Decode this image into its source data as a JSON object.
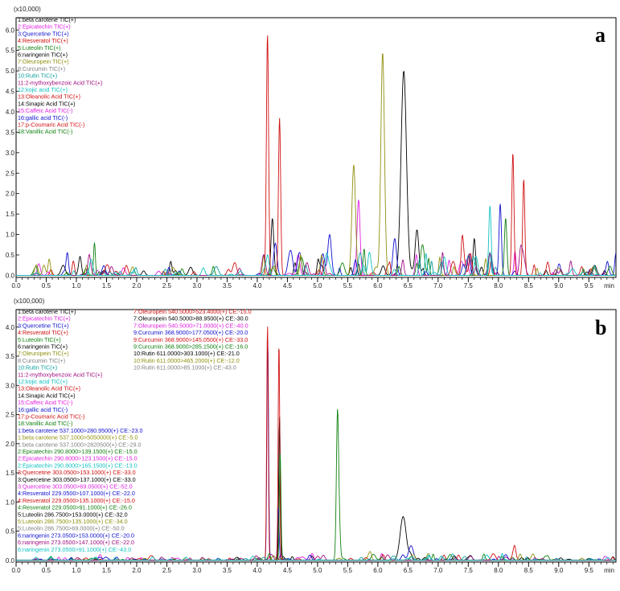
{
  "chart_data": [
    {
      "type": "line",
      "panel_label": "a",
      "y_scale_label": "(x10,000)",
      "x_unit": "min",
      "xlim": [
        0.0,
        9.95
      ],
      "ylim": [
        -0.05,
        6.3
      ],
      "x_ticks": [
        "0.0",
        "0.1",
        "0.2",
        "0.3",
        "0.4",
        "0.5",
        "0.6",
        "0.7",
        "0.8",
        "0.9",
        "1.0",
        "1.1",
        "1.2",
        "1.3",
        "1.4",
        "1.5",
        "1.6",
        "1.7",
        "1.8",
        "1.9",
        "2.0",
        "2.1",
        "2.2",
        "2.3",
        "2.4",
        "2.5",
        "2.6",
        "2.7",
        "2.8",
        "2.9",
        "3.0",
        "3.1",
        "3.2",
        "3.3",
        "3.4",
        "3.5",
        "3.6",
        "3.7",
        "3.8",
        "3.9",
        "4.0",
        "4.1",
        "4.2",
        "4.3",
        "4.4",
        "4.5",
        "4.6",
        "4.7",
        "4.8",
        "4.9",
        "5.0",
        "5.1",
        "5.2",
        "5.3",
        "5.4",
        "5.5",
        "5.6",
        "5.7",
        "5.8",
        "5.9",
        "6.0",
        "6.1",
        "6.2",
        "6.3",
        "6.4",
        "6.5",
        "6.6",
        "6.7",
        "6.8",
        "6.9",
        "7.0",
        "7.1",
        "7.2",
        "7.3",
        "7.4",
        "7.5",
        "7.6",
        "7.7",
        "7.8",
        "7.9",
        "8.0",
        "8.1",
        "8.2",
        "8.3",
        "8.4",
        "8.5",
        "8.6",
        "8.7",
        "8.8",
        "8.9",
        "9.0",
        "9.1",
        "9.2",
        "9.3",
        "9.4",
        "9.5",
        "9.6",
        "9.7",
        "9.8",
        "9.9"
      ],
      "x_tick_labels": [
        "0.0",
        "0.5",
        "1.0",
        "1.5",
        "2.0",
        "2.5",
        "3.0",
        "3.5",
        "4.0",
        "4.5",
        "5.0",
        "5.5",
        "6.0",
        "6.5",
        "7.0",
        "7.5",
        "8.0",
        "8.5",
        "9.0",
        "9.5"
      ],
      "y_ticks": [
        "0.0",
        "0.5",
        "1.0",
        "1.5",
        "2.0",
        "2.5",
        "3.0",
        "3.5",
        "4.0",
        "4.5",
        "5.0",
        "5.5",
        "6.0"
      ],
      "legend": [
        {
          "text": "1:beta carotene TIC(+)",
          "color": "#000000"
        },
        {
          "text": "2:Epicatechin TIC(+)",
          "color": "#e020e0"
        },
        {
          "text": "3:Quercetine TIC(+)",
          "color": "#1010d0"
        },
        {
          "text": "4:Resveratol TIC(+)",
          "color": "#d01010"
        },
        {
          "text": "5:Luteolin TIC(+)",
          "color": "#108010"
        },
        {
          "text": "6:naringenin TIC(+)",
          "color": "#000000"
        },
        {
          "text": "7:Oleuropein TIC(+)",
          "color": "#909010"
        },
        {
          "text": "8:Curcumin TIC(+)",
          "color": "#808080"
        },
        {
          "text": "10:Rutin TIC(+)",
          "color": "#10a0a0"
        },
        {
          "text": "11:2-mythoxybenzoic Acid TIC(+)",
          "color": "#a01080"
        },
        {
          "text": "12:kojic acid TIC(+)",
          "color": "#10c0c0"
        },
        {
          "text": "13:Oleanolic Acid TIC(+)",
          "color": "#d01010"
        },
        {
          "text": "14:Sinapic Acid TIC(+)",
          "color": "#000000"
        },
        {
          "text": "15:Caffeic Acid TIC(-)",
          "color": "#e020e0"
        },
        {
          "text": "16:gallic acid TIC(-)",
          "color": "#1010d0"
        },
        {
          "text": "17:p-Coumaric Acid TIC(-)",
          "color": "#d01010"
        },
        {
          "text": "18:Vanillic Acid TIC(-)",
          "color": "#108010"
        }
      ],
      "peaks": [
        {
          "x": 4.17,
          "h": 5.9,
          "w": 0.018,
          "color": "#d01010"
        },
        {
          "x": 4.37,
          "h": 3.85,
          "w": 0.018,
          "color": "#d01010"
        },
        {
          "x": 6.08,
          "h": 5.45,
          "w": 0.03,
          "color": "#909010"
        },
        {
          "x": 6.43,
          "h": 5.0,
          "w": 0.045,
          "color": "#000000"
        },
        {
          "x": 5.6,
          "h": 2.7,
          "w": 0.03,
          "color": "#909010"
        },
        {
          "x": 5.68,
          "h": 1.85,
          "w": 0.025,
          "color": "#e020e0"
        },
        {
          "x": 8.24,
          "h": 3.0,
          "w": 0.018,
          "color": "#d01010"
        },
        {
          "x": 8.42,
          "h": 2.35,
          "w": 0.018,
          "color": "#d01010"
        },
        {
          "x": 8.03,
          "h": 1.75,
          "w": 0.02,
          "color": "#1010d0"
        },
        {
          "x": 7.86,
          "h": 1.7,
          "w": 0.02,
          "color": "#10c0c0"
        },
        {
          "x": 8.12,
          "h": 1.4,
          "w": 0.02,
          "color": "#108010"
        },
        {
          "x": 1.3,
          "h": 0.8,
          "w": 0.015,
          "color": "#108010"
        },
        {
          "x": 0.85,
          "h": 0.55,
          "w": 0.02,
          "color": "#1010d0"
        },
        {
          "x": 0.55,
          "h": 0.4,
          "w": 0.02,
          "color": "#909010"
        },
        {
          "x": 0.95,
          "h": 0.35,
          "w": 0.02,
          "color": "#d01010"
        },
        {
          "x": 4.25,
          "h": 0.85,
          "w": 0.02,
          "color": "#000000"
        },
        {
          "x": 5.2,
          "h": 1.0,
          "w": 0.03,
          "color": "#1010d0"
        },
        {
          "x": 6.28,
          "h": 0.9,
          "w": 0.03,
          "color": "#1010d0"
        },
        {
          "x": 6.65,
          "h": 1.1,
          "w": 0.03,
          "color": "#000000"
        },
        {
          "x": 7.4,
          "h": 0.85,
          "w": 0.02,
          "color": "#d01010"
        },
        {
          "x": 7.6,
          "h": 0.9,
          "w": 0.02,
          "color": "#000000"
        },
        {
          "x": 9.95,
          "h": 0.55,
          "w": 0.02,
          "color": "#1010d0"
        },
        {
          "x": 9.2,
          "h": 0.35,
          "w": 0.02,
          "color": "#a01080"
        }
      ]
    },
    {
      "type": "line",
      "panel_label": "b",
      "y_scale_label": "(x100,000)",
      "x_unit": "min",
      "xlim": [
        0.0,
        9.95
      ],
      "ylim": [
        -0.03,
        4.3
      ],
      "x_ticks": [
        "0.0",
        "0.1",
        "0.2",
        "0.3",
        "0.4",
        "0.5",
        "0.6",
        "0.7",
        "0.8",
        "0.9",
        "1.0",
        "1.1",
        "1.2",
        "1.3",
        "1.4",
        "1.5",
        "1.6",
        "1.7",
        "1.8",
        "1.9",
        "2.0",
        "2.1",
        "2.2",
        "2.3",
        "2.4",
        "2.5",
        "2.6",
        "2.7",
        "2.8",
        "2.9",
        "3.0",
        "3.1",
        "3.2",
        "3.3",
        "3.4",
        "3.5",
        "3.6",
        "3.7",
        "3.8",
        "3.9",
        "4.0",
        "4.1",
        "4.2",
        "4.3",
        "4.4",
        "4.5",
        "4.6",
        "4.7",
        "4.8",
        "4.9",
        "5.0",
        "5.1",
        "5.2",
        "5.3",
        "5.4",
        "5.5",
        "5.6",
        "5.7",
        "5.8",
        "5.9",
        "6.0",
        "6.1",
        "6.2",
        "6.3",
        "6.4",
        "6.5",
        "6.6",
        "6.7",
        "6.8",
        "6.9",
        "7.0",
        "7.1",
        "7.2",
        "7.3",
        "7.4",
        "7.5",
        "7.6",
        "7.7",
        "7.8",
        "7.9",
        "8.0",
        "8.1",
        "8.2",
        "8.3",
        "8.4",
        "8.5",
        "8.6",
        "8.7",
        "8.8",
        "8.9",
        "9.0",
        "9.1",
        "9.2",
        "9.3",
        "9.4",
        "9.5",
        "9.6",
        "9.7",
        "9.8",
        "9.9"
      ],
      "x_tick_labels": [
        "0.0",
        "0.5",
        "1.0",
        "1.5",
        "2.0",
        "2.5",
        "3.0",
        "3.5",
        "4.0",
        "4.5",
        "5.0",
        "5.5",
        "6.0",
        "6.5",
        "7.0",
        "7.5",
        "8.0",
        "8.5",
        "9.0",
        "9.5"
      ],
      "y_ticks": [
        "0.0",
        "0.5",
        "1.0",
        "1.5",
        "2.0",
        "2.5",
        "3.0",
        "3.5",
        "4.0"
      ],
      "legend": [
        {
          "text": "1:beta carotene TIC(+)",
          "color": "#000000"
        },
        {
          "text": "2:Epicatechin TIC(+)",
          "color": "#e020e0"
        },
        {
          "text": "3:Quercetine TIC(+)",
          "color": "#1010d0"
        },
        {
          "text": "4:Resveratol TIC(+)",
          "color": "#d01010"
        },
        {
          "text": "5:Luteolin TIC(+)",
          "color": "#108010"
        },
        {
          "text": "6:naringenin TIC(+)",
          "color": "#000000"
        },
        {
          "text": "7:Oleuropein TIC(+)",
          "color": "#909010"
        },
        {
          "text": "8:Curcumin TIC(+)",
          "color": "#808080"
        },
        {
          "text": "10:Rutin TIC(+)",
          "color": "#10a0a0"
        },
        {
          "text": "11:2-mythoxybenzoic Acid TIC(+)",
          "color": "#a01080"
        },
        {
          "text": "12:kojic acid TIC(+)",
          "color": "#10c0c0"
        },
        {
          "text": "13:Oleanolic Acid TIC(+)",
          "color": "#d01010"
        },
        {
          "text": "14:Sinapic Acid TIC(+)",
          "color": "#000000"
        },
        {
          "text": "15:Caffeic Acid TIC(-)",
          "color": "#e020e0"
        },
        {
          "text": "16:gallic acid TIC(-)",
          "color": "#1010d0"
        },
        {
          "text": "17:p-Coumaric Acid TIC(-)",
          "color": "#d01010"
        },
        {
          "text": "18:Vanillic Acid TIC(-)",
          "color": "#108010"
        },
        {
          "text": "1:beta carotene 537.1000>280.9500(+) CE:-23.0",
          "color": "#1010d0"
        },
        {
          "text": "1:beta carotene 537.1000>5050000(+) CE:-5.0",
          "color": "#909010"
        },
        {
          "text": "1:beta carotene 537.1000>2820500(+) CE:-29.0",
          "color": "#808080"
        },
        {
          "text": "2:Epicatechin 290.8000>139.1500(+) CE:-15.0",
          "color": "#108010"
        },
        {
          "text": "2:Epicatechin 290.8000>123.1500(+) CE:-15.0",
          "color": "#e020e0"
        },
        {
          "text": "2:Epicatechin 290.8000>165.1500(+) CE:-13.0",
          "color": "#10c0c0"
        },
        {
          "text": "3:Quercetine 303.0500>153.1000(+) CE:-33.0",
          "color": "#d01010"
        },
        {
          "text": "3:Quercetine 303.0500>137.1000(+) CE:-33.0",
          "color": "#000000"
        },
        {
          "text": "3:Quercetine 303.0500>69.0500(+) CE:-52.0",
          "color": "#e020e0"
        },
        {
          "text": "4:Resveratol 229.0500>107.1000(+) CE:-22.0",
          "color": "#1010d0"
        },
        {
          "text": "4:Resveratol 229.0500>135.1000(+) CE:-15.0",
          "color": "#d01010"
        },
        {
          "text": "4:Resveratol 229.0500>91.1000(+) CE:-26.0",
          "color": "#108010"
        },
        {
          "text": "5:Luteolin 286.7500>153.0000(+) CE:-32.0",
          "color": "#000000"
        },
        {
          "text": "5:Luteolin 286.7500>135.1000(+) CE:-34.0",
          "color": "#909010"
        },
        {
          "text": "5:Luteolin 286.7500>69.0000(+) CE:-50.0",
          "color": "#808080"
        },
        {
          "text": "6:naringenin 273.0500>153.0000(+) CE:-20.0",
          "color": "#1010d0"
        },
        {
          "text": "6:naringenin 273.0500>147.1000(+) CE:-22.0",
          "color": "#a01080"
        },
        {
          "text": "6:naringenin 273.0500>91.1000(+) CE:-43.0",
          "color": "#10c0c0"
        },
        {
          "text": "7:Oleuropein 540.5000>523.4000(+) CE:-15.0",
          "color": "#d01010"
        },
        {
          "text": "7:Oleuropein 540.5000>88.9500(+) CE:-30.0",
          "color": "#000000"
        },
        {
          "text": "7:Oleuropein 540.5000>71.0000(+) CE:-40.0",
          "color": "#e020e0"
        },
        {
          "text": "9:Curcumin 368.9000>177.0500(+) CE:-20.0",
          "color": "#1010d0"
        },
        {
          "text": "9:Curcumin 368.9000>145.0500(+) CE:-33.0",
          "color": "#d01010"
        },
        {
          "text": "9:Curcumin 368.9000>285.1500(+) CE:-16.0",
          "color": "#108010"
        },
        {
          "text": "10:Rutin 611.0000>303.1000(+) CE:-21.0",
          "color": "#000000"
        },
        {
          "text": "10:Rutin 611.0000>465.2000(+) CE:-12.0",
          "color": "#909010"
        },
        {
          "text": "10:Rutin 611.0000>85.1000(+) CE:-43.0",
          "color": "#808080"
        }
      ],
      "peaks": [
        {
          "x": 4.17,
          "h": 4.05,
          "w": 0.013,
          "color": "#d01010"
        },
        {
          "x": 4.17,
          "h": 2.45,
          "w": 0.013,
          "color": "#1010d0"
        },
        {
          "x": 4.18,
          "h": 1.65,
          "w": 0.013,
          "color": "#1010d0"
        },
        {
          "x": 4.36,
          "h": 3.75,
          "w": 0.013,
          "color": "#d01010"
        },
        {
          "x": 4.37,
          "h": 2.45,
          "w": 0.013,
          "color": "#000000"
        },
        {
          "x": 4.38,
          "h": 1.8,
          "w": 0.013,
          "color": "#108010"
        },
        {
          "x": 4.35,
          "h": 0.9,
          "w": 0.013,
          "color": "#1010d0"
        },
        {
          "x": 5.33,
          "h": 2.45,
          "w": 0.018,
          "color": "#108010"
        },
        {
          "x": 5.36,
          "h": 0.55,
          "w": 0.018,
          "color": "#108010"
        },
        {
          "x": 6.42,
          "h": 0.42,
          "w": 0.05,
          "color": "#000000"
        },
        {
          "x": 6.42,
          "h": 0.33,
          "w": 0.05,
          "color": "#000000"
        },
        {
          "x": 6.55,
          "h": 0.25,
          "w": 0.04,
          "color": "#1010d0"
        },
        {
          "x": 8.27,
          "h": 0.15,
          "w": 0.02,
          "color": "#d01010"
        },
        {
          "x": 7.2,
          "h": 0.1,
          "w": 0.03,
          "color": "#108010"
        },
        {
          "x": 9.9,
          "h": 0.06,
          "w": 0.02,
          "color": "#000000"
        }
      ]
    }
  ]
}
